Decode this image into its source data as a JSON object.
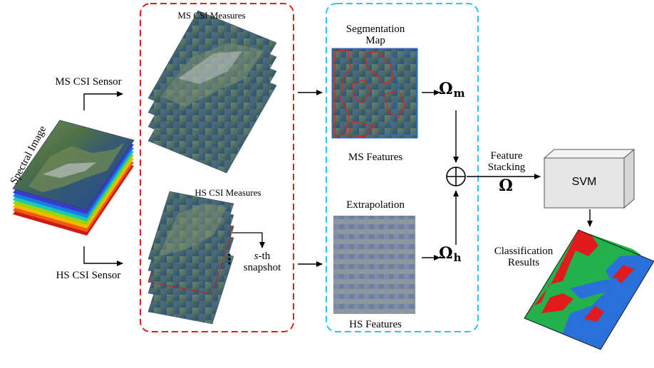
{
  "input": {
    "spectral_image": "Spectral Image",
    "ms_sensor": "MS CSI Sensor",
    "hs_sensor": "HS CSI Sensor"
  },
  "measures": {
    "ms_title": "MS CSI Measures",
    "hs_title": "HS CSI Measures",
    "snapshot_prefix": "s",
    "snapshot_suffix": "-th",
    "snapshot_word": "snapshot"
  },
  "features": {
    "segmentation_line1": "Segmentation",
    "segmentation_line2": "Map",
    "ms_features": "MS Features",
    "extrapolation": "Extrapolation",
    "hs_features": "HS Features"
  },
  "fusion": {
    "omega_m_symbol": "Ω",
    "omega_m_sub": "m",
    "omega_h_symbol": "Ω",
    "omega_h_sub": "h",
    "oplus": "⊕",
    "stacking_line1": "Feature",
    "stacking_line2": "Stacking",
    "omega_symbol": "Ω"
  },
  "classifier": {
    "svm_label": "SVM",
    "result_line1": "Classification",
    "result_line2": "Results"
  },
  "colors": {
    "ms_box_border": "#e0201e",
    "feature_box_border": "#2bc6ec",
    "class_green": "#22b14c",
    "class_red": "#e31a1c",
    "class_blue": "#2a70d8"
  }
}
